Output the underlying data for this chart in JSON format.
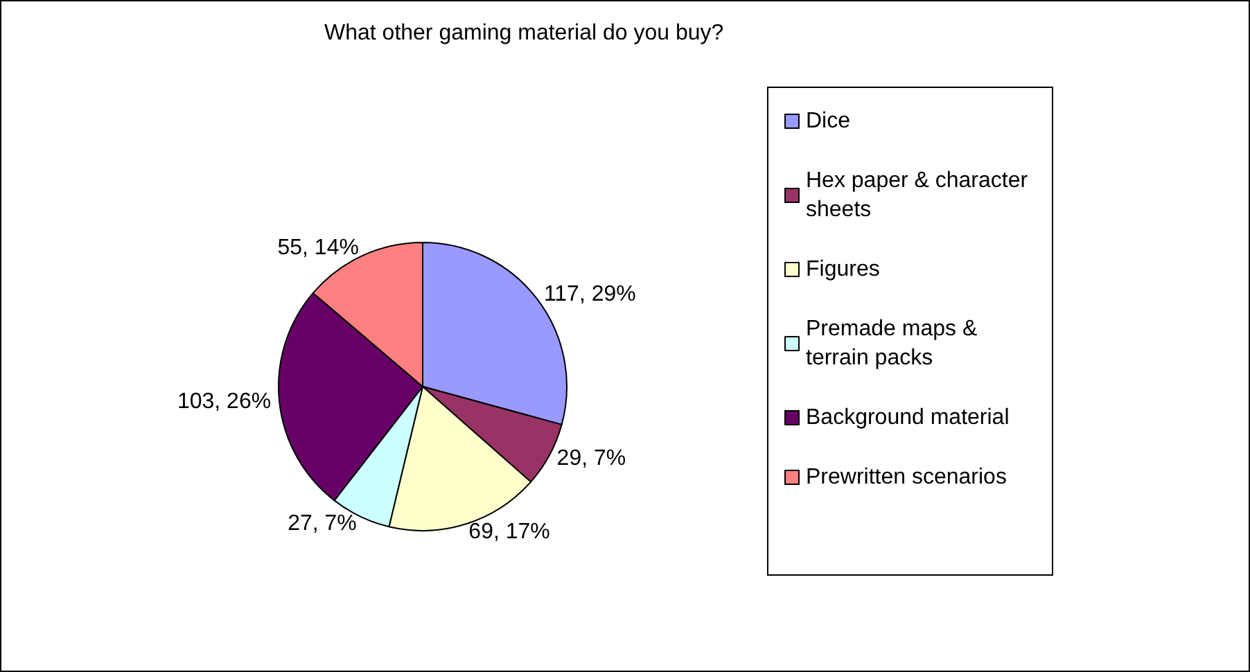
{
  "chart_data": {
    "type": "pie",
    "title": "What other gaming material do you buy?",
    "categories": [
      "Dice",
      "Hex paper & character sheets",
      "Figures",
      "Premade maps & terrain packs",
      "Background material",
      "Prewritten scenarios"
    ],
    "values": [
      117,
      29,
      69,
      27,
      103,
      55
    ],
    "colors": [
      "#9999ff",
      "#993366",
      "#ffffcc",
      "#ccffff",
      "#660066",
      "#ff8080"
    ],
    "value_labels": [
      "117, 29%",
      "29, 7%",
      "69, 17%",
      "27, 7%",
      "103, 26%",
      "55, 14%"
    ],
    "legend": "right"
  }
}
